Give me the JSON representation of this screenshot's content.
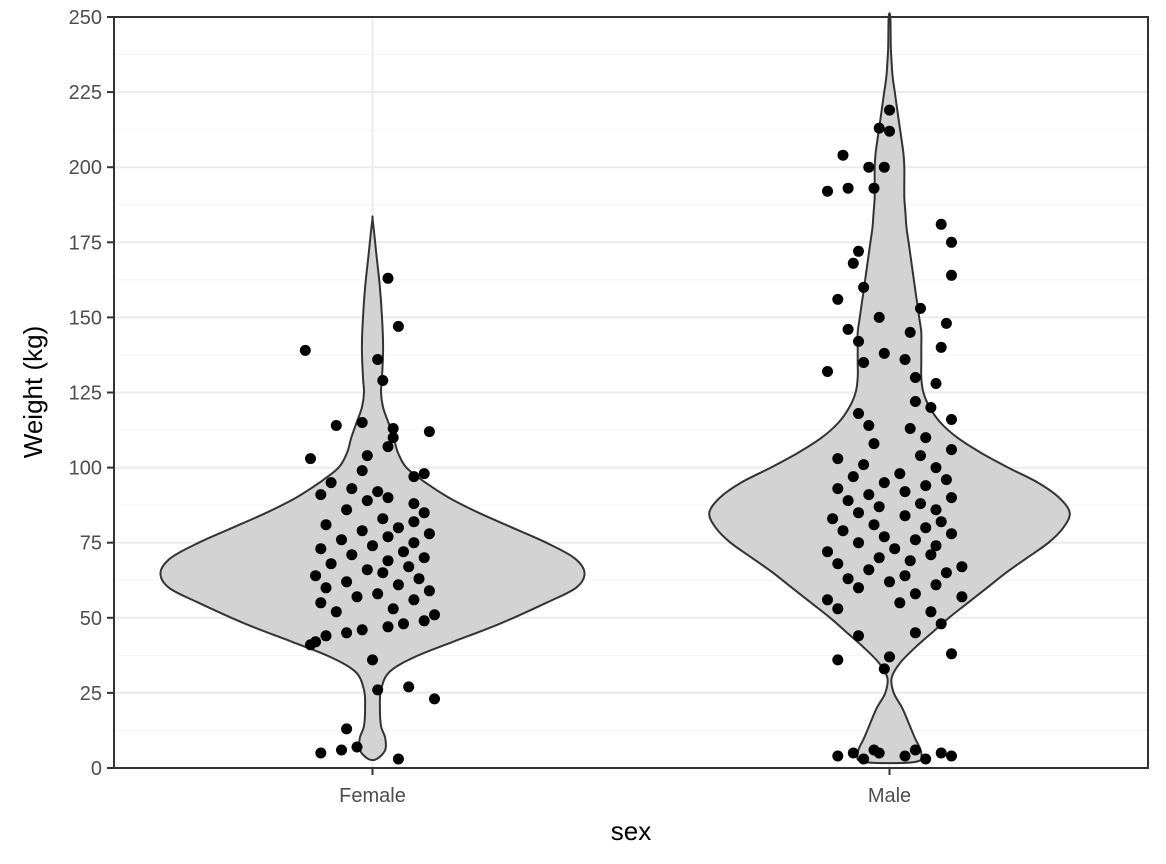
{
  "chart_data": {
    "type": "violin",
    "xlabel": "sex",
    "ylabel": "Weight (kg)",
    "categories": [
      "Female",
      "Male"
    ],
    "ylim": [
      0,
      250
    ],
    "yticks": [
      0,
      25,
      50,
      75,
      100,
      125,
      150,
      175,
      200,
      225,
      250
    ],
    "grid": true,
    "colors": {
      "violin_fill": "#d3d3d3",
      "violin_stroke": "#333333",
      "point": "#000000",
      "grid_major": "#ebebeb",
      "grid_minor": "#f4f4f4",
      "panel_border": "#333333"
    },
    "violins": [
      {
        "category": "Female",
        "density": [
          [
            3,
            0.02
          ],
          [
            6,
            0.06
          ],
          [
            10,
            0.06
          ],
          [
            14,
            0.04
          ],
          [
            20,
            0.035
          ],
          [
            26,
            0.04
          ],
          [
            32,
            0.08
          ],
          [
            37,
            0.2
          ],
          [
            42,
            0.38
          ],
          [
            48,
            0.6
          ],
          [
            55,
            0.82
          ],
          [
            60,
            0.96
          ],
          [
            65,
            1.0
          ],
          [
            70,
            0.95
          ],
          [
            75,
            0.82
          ],
          [
            80,
            0.66
          ],
          [
            85,
            0.5
          ],
          [
            90,
            0.36
          ],
          [
            95,
            0.25
          ],
          [
            100,
            0.16
          ],
          [
            105,
            0.12
          ],
          [
            110,
            0.1
          ],
          [
            115,
            0.075
          ],
          [
            120,
            0.05
          ],
          [
            125,
            0.04
          ],
          [
            130,
            0.045
          ],
          [
            140,
            0.05
          ],
          [
            150,
            0.045
          ],
          [
            160,
            0.035
          ],
          [
            170,
            0.02
          ],
          [
            178,
            0.008
          ],
          [
            183,
            0.0
          ]
        ],
        "points": [
          [
            3,
            0.05
          ],
          [
            6,
            -0.06
          ],
          [
            5,
            -0.1
          ],
          [
            7,
            -0.03
          ],
          [
            13,
            -0.05
          ],
          [
            26,
            0.01
          ],
          [
            27,
            0.07
          ],
          [
            23,
            0.12
          ],
          [
            36,
            0.0
          ],
          [
            41,
            -0.12
          ],
          [
            42,
            -0.11
          ],
          [
            44,
            -0.09
          ],
          [
            45,
            -0.05
          ],
          [
            46,
            -0.02
          ],
          [
            47,
            0.03
          ],
          [
            48,
            0.06
          ],
          [
            49,
            0.1
          ],
          [
            51,
            0.12
          ],
          [
            52,
            -0.07
          ],
          [
            53,
            0.04
          ],
          [
            55,
            -0.1
          ],
          [
            56,
            0.08
          ],
          [
            57,
            -0.03
          ],
          [
            58,
            0.01
          ],
          [
            59,
            0.11
          ],
          [
            60,
            -0.09
          ],
          [
            61,
            0.05
          ],
          [
            62,
            -0.05
          ],
          [
            63,
            0.09
          ],
          [
            64,
            -0.11
          ],
          [
            65,
            0.02
          ],
          [
            66,
            -0.01
          ],
          [
            67,
            0.07
          ],
          [
            68,
            -0.08
          ],
          [
            69,
            0.03
          ],
          [
            70,
            0.1
          ],
          [
            71,
            -0.04
          ],
          [
            72,
            0.06
          ],
          [
            73,
            -0.1
          ],
          [
            74,
            0.0
          ],
          [
            75,
            0.08
          ],
          [
            76,
            -0.06
          ],
          [
            77,
            0.03
          ],
          [
            78,
            0.11
          ],
          [
            79,
            -0.02
          ],
          [
            80,
            0.05
          ],
          [
            81,
            -0.09
          ],
          [
            82,
            0.08
          ],
          [
            83,
            0.02
          ],
          [
            85,
            0.1
          ],
          [
            86,
            -0.05
          ],
          [
            88,
            0.08
          ],
          [
            89,
            -0.01
          ],
          [
            90,
            0.03
          ],
          [
            91,
            -0.1
          ],
          [
            92,
            0.01
          ],
          [
            93,
            -0.04
          ],
          [
            95,
            -0.08
          ],
          [
            97,
            0.08
          ],
          [
            98,
            0.1
          ],
          [
            99,
            -0.02
          ],
          [
            103,
            -0.12
          ],
          [
            104,
            -0.01
          ],
          [
            107,
            0.03
          ],
          [
            110,
            0.04
          ],
          [
            112,
            0.11
          ],
          [
            113,
            0.04
          ],
          [
            114,
            -0.07
          ],
          [
            115,
            -0.02
          ],
          [
            129,
            0.02
          ],
          [
            136,
            0.01
          ],
          [
            139,
            -0.13
          ],
          [
            147,
            0.05
          ],
          [
            163,
            0.03
          ]
        ]
      },
      {
        "category": "Male",
        "density": [
          [
            2,
            0.12
          ],
          [
            5,
            0.15
          ],
          [
            10,
            0.12
          ],
          [
            15,
            0.09
          ],
          [
            20,
            0.06
          ],
          [
            25,
            0.02
          ],
          [
            30,
            0.01
          ],
          [
            35,
            0.05
          ],
          [
            40,
            0.12
          ],
          [
            45,
            0.2
          ],
          [
            50,
            0.28
          ],
          [
            55,
            0.37
          ],
          [
            60,
            0.46
          ],
          [
            65,
            0.55
          ],
          [
            70,
            0.65
          ],
          [
            75,
            0.75
          ],
          [
            80,
            0.82
          ],
          [
            85,
            0.85
          ],
          [
            90,
            0.8
          ],
          [
            95,
            0.7
          ],
          [
            100,
            0.56
          ],
          [
            105,
            0.43
          ],
          [
            110,
            0.32
          ],
          [
            115,
            0.24
          ],
          [
            120,
            0.19
          ],
          [
            125,
            0.16
          ],
          [
            130,
            0.15
          ],
          [
            135,
            0.15
          ],
          [
            140,
            0.15
          ],
          [
            145,
            0.15
          ],
          [
            150,
            0.14
          ],
          [
            155,
            0.13
          ],
          [
            160,
            0.12
          ],
          [
            165,
            0.11
          ],
          [
            170,
            0.1
          ],
          [
            175,
            0.09
          ],
          [
            180,
            0.08
          ],
          [
            185,
            0.075
          ],
          [
            190,
            0.07
          ],
          [
            195,
            0.07
          ],
          [
            200,
            0.07
          ],
          [
            205,
            0.065
          ],
          [
            210,
            0.055
          ],
          [
            215,
            0.045
          ],
          [
            220,
            0.035
          ],
          [
            225,
            0.025
          ],
          [
            230,
            0.015
          ],
          [
            235,
            0.01
          ],
          [
            240,
            0.006
          ],
          [
            250,
            0.004
          ]
        ],
        "points": [
          [
            3,
            -0.05
          ],
          [
            4,
            0.03
          ],
          [
            5,
            0.1
          ],
          [
            4,
            -0.1
          ],
          [
            5,
            -0.02
          ],
          [
            6,
            0.05
          ],
          [
            3,
            0.07
          ],
          [
            5,
            -0.07
          ],
          [
            4,
            0.12
          ],
          [
            6,
            -0.03
          ],
          [
            33,
            -0.01
          ],
          [
            36,
            -0.1
          ],
          [
            37,
            0.0
          ],
          [
            38,
            0.12
          ],
          [
            44,
            -0.06
          ],
          [
            45,
            0.05
          ],
          [
            48,
            0.1
          ],
          [
            52,
            0.08
          ],
          [
            53,
            -0.1
          ],
          [
            55,
            0.02
          ],
          [
            56,
            -0.12
          ],
          [
            57,
            0.14
          ],
          [
            58,
            0.05
          ],
          [
            60,
            -0.06
          ],
          [
            61,
            0.09
          ],
          [
            62,
            0.0
          ],
          [
            63,
            -0.08
          ],
          [
            64,
            0.03
          ],
          [
            65,
            0.11
          ],
          [
            66,
            -0.04
          ],
          [
            67,
            0.14
          ],
          [
            68,
            -0.1
          ],
          [
            69,
            0.04
          ],
          [
            70,
            -0.02
          ],
          [
            71,
            0.08
          ],
          [
            72,
            -0.12
          ],
          [
            73,
            0.01
          ],
          [
            74,
            0.09
          ],
          [
            75,
            -0.06
          ],
          [
            76,
            0.05
          ],
          [
            77,
            -0.01
          ],
          [
            78,
            0.12
          ],
          [
            79,
            -0.09
          ],
          [
            80,
            0.07
          ],
          [
            81,
            -0.03
          ],
          [
            82,
            0.1
          ],
          [
            83,
            -0.11
          ],
          [
            84,
            0.03
          ],
          [
            85,
            -0.06
          ],
          [
            86,
            0.09
          ],
          [
            87,
            -0.02
          ],
          [
            88,
            0.06
          ],
          [
            89,
            -0.08
          ],
          [
            90,
            0.12
          ],
          [
            91,
            -0.04
          ],
          [
            92,
            0.03
          ],
          [
            93,
            -0.1
          ],
          [
            94,
            0.07
          ],
          [
            95,
            -0.01
          ],
          [
            96,
            0.11
          ],
          [
            97,
            -0.07
          ],
          [
            98,
            0.02
          ],
          [
            100,
            0.09
          ],
          [
            101,
            -0.05
          ],
          [
            103,
            -0.1
          ],
          [
            104,
            0.06
          ],
          [
            106,
            0.12
          ],
          [
            108,
            -0.03
          ],
          [
            110,
            0.07
          ],
          [
            113,
            0.04
          ],
          [
            114,
            -0.04
          ],
          [
            116,
            0.12
          ],
          [
            118,
            -0.06
          ],
          [
            120,
            0.08
          ],
          [
            122,
            0.05
          ],
          [
            128,
            0.09
          ],
          [
            130,
            0.05
          ],
          [
            132,
            -0.12
          ],
          [
            135,
            -0.05
          ],
          [
            136,
            0.03
          ],
          [
            138,
            -0.01
          ],
          [
            140,
            0.1
          ],
          [
            142,
            -0.06
          ],
          [
            145,
            0.04
          ],
          [
            146,
            -0.08
          ],
          [
            148,
            0.11
          ],
          [
            150,
            -0.02
          ],
          [
            153,
            0.06
          ],
          [
            156,
            -0.1
          ],
          [
            160,
            -0.05
          ],
          [
            164,
            0.12
          ],
          [
            168,
            -0.07
          ],
          [
            172,
            -0.06
          ],
          [
            175,
            0.12
          ],
          [
            181,
            0.1
          ],
          [
            192,
            -0.12
          ],
          [
            193,
            -0.08
          ],
          [
            193,
            -0.03
          ],
          [
            200,
            -0.04
          ],
          [
            200,
            -0.01
          ],
          [
            204,
            -0.09
          ],
          [
            212,
            0.0
          ],
          [
            213,
            -0.02
          ],
          [
            219,
            0.0
          ]
        ]
      }
    ]
  }
}
